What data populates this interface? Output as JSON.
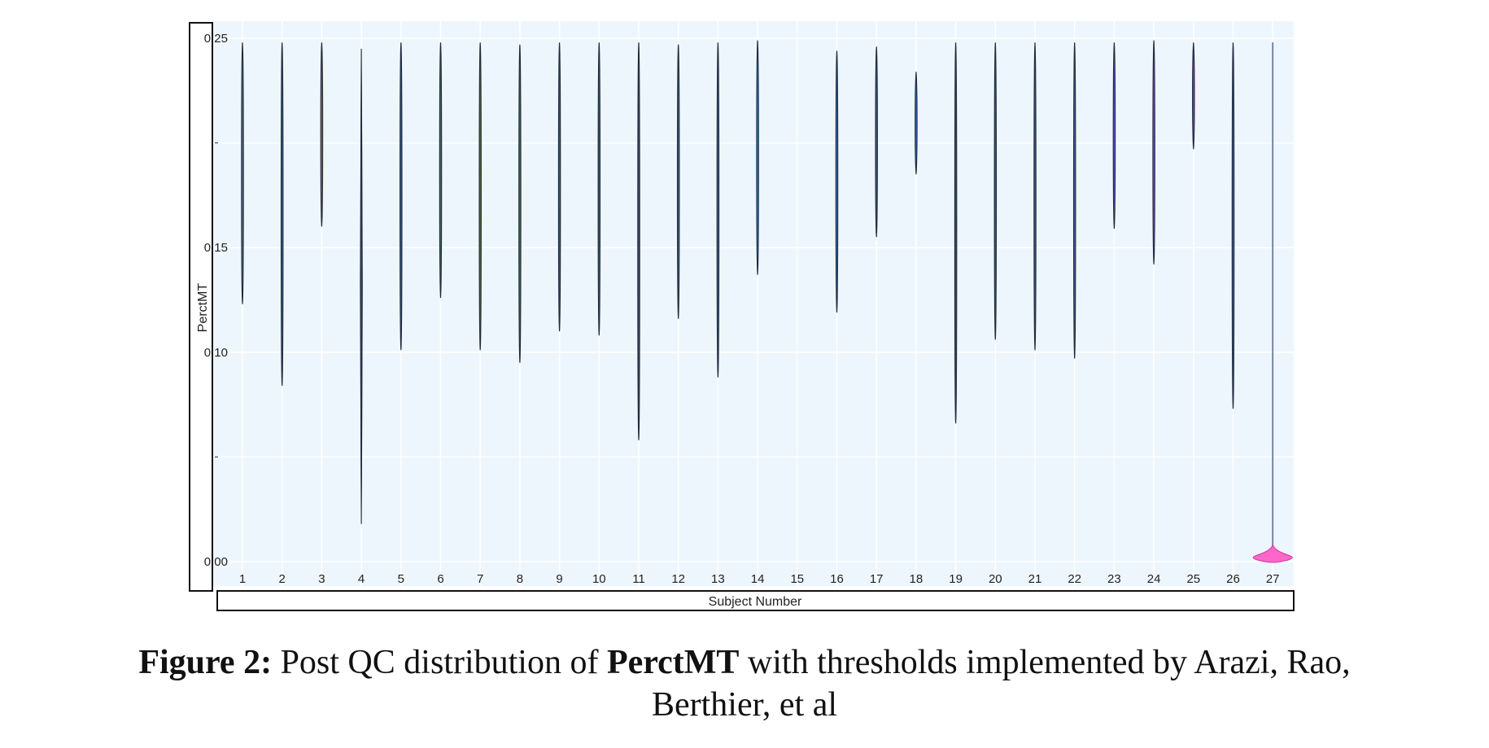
{
  "chart_data": {
    "type": "violin",
    "xlabel": "Subject Number",
    "ylabel": "PerctMT",
    "ylim": [
      0,
      0.25
    ],
    "y_tick_labels": [
      "0.00",
      "0.10",
      "0.15",
      "0.25"
    ],
    "y_tick_values": [
      0,
      0.1,
      0.15,
      0.25
    ],
    "y_minor_ticks": [
      0.05,
      0.2
    ],
    "categories": [
      "1",
      "2",
      "3",
      "4",
      "5",
      "6",
      "7",
      "8",
      "9",
      "10",
      "11",
      "12",
      "13",
      "14",
      "15",
      "16",
      "17",
      "18",
      "19",
      "20",
      "21",
      "22",
      "23",
      "24",
      "25",
      "26",
      "27"
    ],
    "series": [
      {
        "x": "1",
        "min": 0.123,
        "max": 0.248,
        "color": "#5a6a8a"
      },
      {
        "x": "2",
        "min": 0.084,
        "max": 0.248,
        "color": "#3d5a80"
      },
      {
        "x": "3",
        "min": 0.16,
        "max": 0.248,
        "color": "#8a6a2a"
      },
      {
        "x": "4",
        "min": 0.018,
        "max": 0.245,
        "color": "#3d4a60"
      },
      {
        "x": "5",
        "min": 0.101,
        "max": 0.248,
        "color": "#3d5a80"
      },
      {
        "x": "6",
        "min": 0.126,
        "max": 0.248,
        "color": "#4a6a60"
      },
      {
        "x": "7",
        "min": 0.101,
        "max": 0.248,
        "color": "#5a6a3a"
      },
      {
        "x": "8",
        "min": 0.095,
        "max": 0.247,
        "color": "#4a6a50"
      },
      {
        "x": "9",
        "min": 0.11,
        "max": 0.248,
        "color": "#3d5a80"
      },
      {
        "x": "10",
        "min": 0.108,
        "max": 0.248,
        "color": "#3d5a80"
      },
      {
        "x": "11",
        "min": 0.058,
        "max": 0.248,
        "color": "#3d4a60"
      },
      {
        "x": "12",
        "min": 0.116,
        "max": 0.247,
        "color": "#3d5a80"
      },
      {
        "x": "13",
        "min": 0.088,
        "max": 0.248,
        "color": "#3d5a80"
      },
      {
        "x": "14",
        "min": 0.137,
        "max": 0.249,
        "color": "#2a7ad0"
      },
      {
        "x": "15",
        "min": null,
        "max": null,
        "color": "#3d5a80"
      },
      {
        "x": "16",
        "min": 0.119,
        "max": 0.244,
        "color": "#2a6ab0"
      },
      {
        "x": "17",
        "min": 0.155,
        "max": 0.246,
        "color": "#3d5a80"
      },
      {
        "x": "18",
        "min": 0.185,
        "max": 0.234,
        "color": "#2a6ad0"
      },
      {
        "x": "19",
        "min": 0.066,
        "max": 0.248,
        "color": "#3d4a60"
      },
      {
        "x": "20",
        "min": 0.106,
        "max": 0.248,
        "color": "#3d5a80"
      },
      {
        "x": "21",
        "min": 0.101,
        "max": 0.248,
        "color": "#3d5a80"
      },
      {
        "x": "22",
        "min": 0.097,
        "max": 0.248,
        "color": "#4a5aa0"
      },
      {
        "x": "23",
        "min": 0.159,
        "max": 0.248,
        "color": "#6a4ac0"
      },
      {
        "x": "24",
        "min": 0.142,
        "max": 0.249,
        "color": "#7a4ad0"
      },
      {
        "x": "25",
        "min": 0.197,
        "max": 0.248,
        "color": "#8a3ac0"
      },
      {
        "x": "26",
        "min": 0.073,
        "max": 0.248,
        "color": "#3d5a80"
      },
      {
        "x": "27",
        "min": 0.0,
        "max": 0.248,
        "color": "#ff66cc"
      }
    ],
    "background": "#eef6fd",
    "grid": true
  },
  "caption": {
    "label": "Figure 2:",
    "text_a": " Post QC distribution of ",
    "bold_term": "PerctMT",
    "text_b": " with thresholds implemented by Arazi, Rao,",
    "line2": "Berthier, et al"
  }
}
